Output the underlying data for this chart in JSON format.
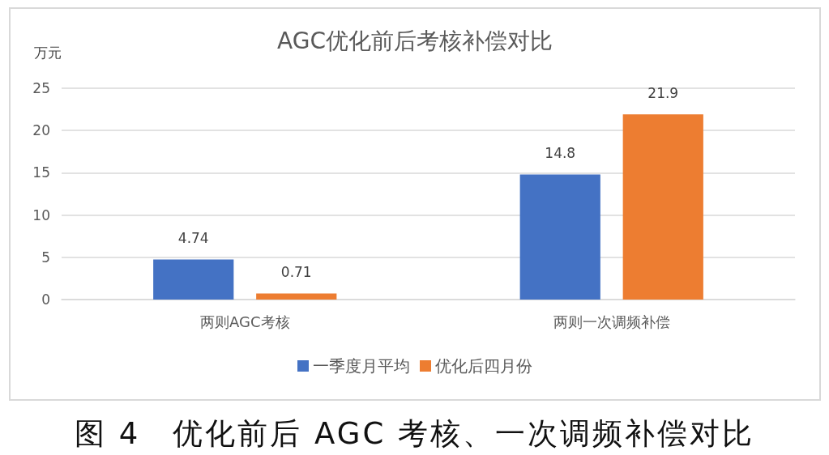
{
  "chart_data": {
    "type": "bar",
    "title": "AGC优化前后考核补偿对比",
    "ylabel": "万元",
    "categories": [
      "两则AGC考核",
      "两则一次调频补偿"
    ],
    "series": [
      {
        "name": "一季度月平均",
        "color": "#4472c4",
        "values": [
          4.74,
          14.8
        ]
      },
      {
        "name": "优化后四月份",
        "color": "#ed7d31",
        "values": [
          0.71,
          21.9
        ]
      }
    ],
    "ylim": [
      0,
      25
    ],
    "yticks": [
      0,
      5,
      10,
      15,
      20,
      25
    ],
    "grid": "y",
    "legend": "bottom",
    "data_labels": true,
    "annotations": [
      "图 4　优化前后 AGC 考核、一次调频补偿对比"
    ]
  }
}
